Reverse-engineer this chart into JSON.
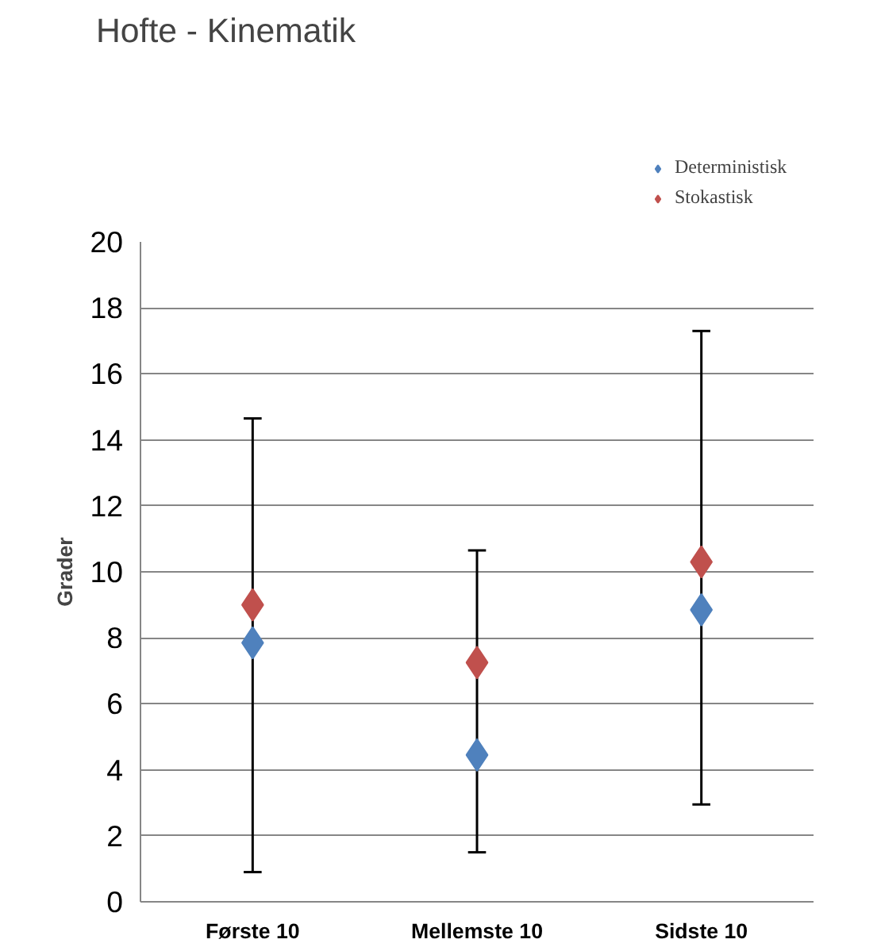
{
  "chart_data": {
    "type": "scatter",
    "title": "Hofte - Kinematik",
    "ylabel": "Grader",
    "categories": [
      "Første 10",
      "Mellemste 10",
      "Sidste 10"
    ],
    "series": [
      {
        "name": "Deterministisk",
        "color": "#4f81bd",
        "values": [
          7.85,
          4.45,
          8.85
        ],
        "errors": [
          [
            0.9,
            14.65
          ],
          [
            1.5,
            10.65
          ],
          [
            2.95,
            17.3
          ]
        ]
      },
      {
        "name": "Stokastisk",
        "color": "#c0504d",
        "values": [
          9.0,
          7.25,
          10.3
        ]
      }
    ],
    "ylim": [
      0,
      20
    ],
    "yticks": [
      0,
      2,
      4,
      6,
      8,
      10,
      12,
      14,
      16,
      18,
      20
    ],
    "grid": "y",
    "legend": "top right",
    "marker": "diamond"
  }
}
